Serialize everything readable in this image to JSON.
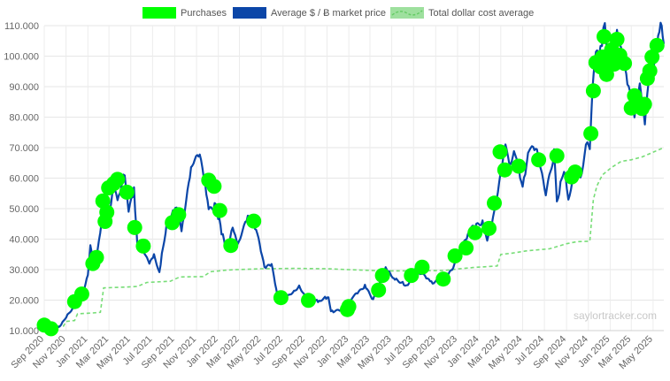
{
  "chart_data": {
    "type": "line",
    "title": "",
    "xlabel": "",
    "ylabel": "",
    "x_range": [
      "2020-09-01",
      "2025-05-31"
    ],
    "ylim": [
      10000,
      110000
    ],
    "grid": true,
    "legend_position": "top-center",
    "y_ticks": [
      {
        "value": 10000,
        "label": "10.000"
      },
      {
        "value": 20000,
        "label": "20.000"
      },
      {
        "value": 30000,
        "label": "30.000"
      },
      {
        "value": 40000,
        "label": "40.000"
      },
      {
        "value": 50000,
        "label": "50.000"
      },
      {
        "value": 60000,
        "label": "60.000"
      },
      {
        "value": 70000,
        "label": "70.000"
      },
      {
        "value": 80000,
        "label": "80.000"
      },
      {
        "value": 90000,
        "label": "90.000"
      },
      {
        "value": 100000,
        "label": "100.000"
      },
      {
        "value": 110000,
        "label": "110.000"
      }
    ],
    "x_ticks": [
      {
        "date": "2020-09-01",
        "label": "Sep 2020"
      },
      {
        "date": "2020-11-01",
        "label": "Nov 2020"
      },
      {
        "date": "2021-01-01",
        "label": "Jan 2021"
      },
      {
        "date": "2021-03-01",
        "label": "Mar 2021"
      },
      {
        "date": "2021-05-01",
        "label": "May 2021"
      },
      {
        "date": "2021-07-01",
        "label": "Jul 2021"
      },
      {
        "date": "2021-09-01",
        "label": "Sep 2021"
      },
      {
        "date": "2021-11-01",
        "label": "Nov 2021"
      },
      {
        "date": "2022-01-01",
        "label": "Jan 2022"
      },
      {
        "date": "2022-03-01",
        "label": "Mar 2022"
      },
      {
        "date": "2022-05-01",
        "label": "May 2022"
      },
      {
        "date": "2022-07-01",
        "label": "Jul 2022"
      },
      {
        "date": "2022-09-01",
        "label": "Sep 2022"
      },
      {
        "date": "2022-11-01",
        "label": "Nov 2022"
      },
      {
        "date": "2023-01-01",
        "label": "Jan 2023"
      },
      {
        "date": "2023-03-01",
        "label": "Mar 2023"
      },
      {
        "date": "2023-05-01",
        "label": "May 2023"
      },
      {
        "date": "2023-07-01",
        "label": "Jul 2023"
      },
      {
        "date": "2023-09-01",
        "label": "Sep 2023"
      },
      {
        "date": "2023-11-01",
        "label": "Nov 2023"
      },
      {
        "date": "2024-01-01",
        "label": "Jan 2024"
      },
      {
        "date": "2024-03-01",
        "label": "Mar 2024"
      },
      {
        "date": "2024-05-01",
        "label": "May 2024"
      },
      {
        "date": "2024-07-01",
        "label": "Jul 2024"
      },
      {
        "date": "2024-09-01",
        "label": "Sep 2024"
      },
      {
        "date": "2024-11-01",
        "label": "Nov 2024"
      },
      {
        "date": "2025-01-01",
        "label": "Jan 2025"
      },
      {
        "date": "2025-03-01",
        "label": "Mar 2025"
      },
      {
        "date": "2025-05-01",
        "label": "May 2025"
      }
    ],
    "series": [
      {
        "name": "Purchases",
        "kind": "scatter",
        "color": "#00ff00",
        "points": [
          {
            "x": "2020-09-01",
            "y": 11800
          },
          {
            "x": "2020-09-20",
            "y": 10600
          },
          {
            "x": "2020-11-25",
            "y": 19500
          },
          {
            "x": "2020-12-15",
            "y": 22000
          },
          {
            "x": "2021-01-15",
            "y": 32000
          },
          {
            "x": "2021-01-25",
            "y": 34000
          },
          {
            "x": "2021-02-12",
            "y": 52500
          },
          {
            "x": "2021-02-18",
            "y": 45800
          },
          {
            "x": "2021-02-23",
            "y": 48800
          },
          {
            "x": "2021-02-28",
            "y": 56800
          },
          {
            "x": "2021-03-14",
            "y": 58200
          },
          {
            "x": "2021-03-25",
            "y": 59600
          },
          {
            "x": "2021-04-20",
            "y": 55400
          },
          {
            "x": "2021-05-12",
            "y": 43800
          },
          {
            "x": "2021-06-05",
            "y": 37700
          },
          {
            "x": "2021-08-25",
            "y": 45400
          },
          {
            "x": "2021-09-12",
            "y": 48000
          },
          {
            "x": "2021-12-05",
            "y": 59300
          },
          {
            "x": "2021-12-20",
            "y": 57300
          },
          {
            "x": "2022-01-05",
            "y": 49400
          },
          {
            "x": "2022-02-05",
            "y": 37900
          },
          {
            "x": "2022-04-10",
            "y": 45900
          },
          {
            "x": "2022-06-25",
            "y": 20800
          },
          {
            "x": "2022-09-10",
            "y": 19900
          },
          {
            "x": "2022-12-28",
            "y": 16900
          },
          {
            "x": "2023-01-01",
            "y": 17900
          },
          {
            "x": "2023-03-25",
            "y": 23300
          },
          {
            "x": "2023-04-05",
            "y": 28100
          },
          {
            "x": "2023-06-25",
            "y": 28100
          },
          {
            "x": "2023-07-25",
            "y": 30800
          },
          {
            "x": "2023-09-22",
            "y": 26900
          },
          {
            "x": "2023-10-25",
            "y": 34500
          },
          {
            "x": "2023-11-25",
            "y": 37100
          },
          {
            "x": "2023-12-20",
            "y": 42100
          },
          {
            "x": "2024-01-28",
            "y": 43500
          },
          {
            "x": "2024-02-12",
            "y": 51800
          },
          {
            "x": "2024-02-28",
            "y": 68600
          },
          {
            "x": "2024-03-12",
            "y": 62700
          },
          {
            "x": "2024-04-20",
            "y": 63900
          },
          {
            "x": "2024-06-15",
            "y": 66000
          },
          {
            "x": "2024-08-05",
            "y": 67300
          },
          {
            "x": "2024-09-15",
            "y": 60400
          },
          {
            "x": "2024-09-25",
            "y": 62000
          },
          {
            "x": "2024-11-08",
            "y": 74600
          },
          {
            "x": "2024-11-15",
            "y": 88600
          },
          {
            "x": "2024-11-22",
            "y": 97900
          },
          {
            "x": "2024-12-05",
            "y": 96500
          },
          {
            "x": "2024-12-10",
            "y": 99700
          },
          {
            "x": "2024-12-15",
            "y": 106400
          },
          {
            "x": "2024-12-22",
            "y": 94000
          },
          {
            "x": "2024-12-28",
            "y": 98300
          },
          {
            "x": "2025-01-05",
            "y": 102100
          },
          {
            "x": "2025-01-12",
            "y": 97400
          },
          {
            "x": "2025-01-20",
            "y": 105500
          },
          {
            "x": "2025-01-28",
            "y": 100300
          },
          {
            "x": "2025-02-10",
            "y": 97600
          },
          {
            "x": "2025-03-01",
            "y": 83000
          },
          {
            "x": "2025-03-10",
            "y": 87000
          },
          {
            "x": "2025-03-17",
            "y": 84500
          },
          {
            "x": "2025-03-24",
            "y": 84000
          },
          {
            "x": "2025-03-31",
            "y": 82800
          },
          {
            "x": "2025-04-07",
            "y": 84200
          },
          {
            "x": "2025-04-15",
            "y": 92700
          },
          {
            "x": "2025-04-22",
            "y": 95200
          },
          {
            "x": "2025-04-28",
            "y": 99700
          },
          {
            "x": "2025-05-12",
            "y": 103500
          }
        ]
      },
      {
        "name": "Average $ / Ƀ market price",
        "kind": "line",
        "color": "#0b46a8",
        "points": [
          {
            "x": "2020-09-01",
            "y": 11500
          },
          {
            "x": "2020-09-20",
            "y": 10600
          },
          {
            "x": "2020-10-15",
            "y": 11500
          },
          {
            "x": "2020-11-05",
            "y": 15200
          },
          {
            "x": "2020-11-25",
            "y": 18200
          },
          {
            "x": "2020-12-15",
            "y": 21000
          },
          {
            "x": "2021-01-01",
            "y": 29000
          },
          {
            "x": "2021-01-08",
            "y": 38500
          },
          {
            "x": "2021-01-15",
            "y": 33000
          },
          {
            "x": "2021-01-25",
            "y": 34000
          },
          {
            "x": "2021-02-08",
            "y": 45000
          },
          {
            "x": "2021-02-21",
            "y": 56500
          },
          {
            "x": "2021-02-28",
            "y": 46000
          },
          {
            "x": "2021-03-14",
            "y": 60500
          },
          {
            "x": "2021-03-25",
            "y": 54000
          },
          {
            "x": "2021-04-14",
            "y": 63000
          },
          {
            "x": "2021-04-25",
            "y": 50000
          },
          {
            "x": "2021-05-10",
            "y": 57000
          },
          {
            "x": "2021-05-20",
            "y": 37500
          },
          {
            "x": "2021-06-05",
            "y": 36500
          },
          {
            "x": "2021-06-22",
            "y": 32000
          },
          {
            "x": "2021-07-05",
            "y": 35000
          },
          {
            "x": "2021-07-20",
            "y": 30000
          },
          {
            "x": "2021-08-10",
            "y": 45500
          },
          {
            "x": "2021-09-06",
            "y": 51500
          },
          {
            "x": "2021-09-20",
            "y": 43000
          },
          {
            "x": "2021-10-20",
            "y": 65000
          },
          {
            "x": "2021-11-10",
            "y": 67500
          },
          {
            "x": "2021-11-25",
            "y": 57500
          },
          {
            "x": "2021-12-05",
            "y": 49000
          },
          {
            "x": "2021-12-25",
            "y": 50500
          },
          {
            "x": "2022-01-10",
            "y": 42000
          },
          {
            "x": "2022-01-24",
            "y": 35500
          },
          {
            "x": "2022-02-10",
            "y": 44000
          },
          {
            "x": "2022-02-24",
            "y": 38000
          },
          {
            "x": "2022-03-28",
            "y": 47500
          },
          {
            "x": "2022-04-20",
            "y": 41000
          },
          {
            "x": "2022-05-10",
            "y": 30000
          },
          {
            "x": "2022-05-30",
            "y": 31000
          },
          {
            "x": "2022-06-15",
            "y": 21000
          },
          {
            "x": "2022-07-10",
            "y": 20500
          },
          {
            "x": "2022-08-15",
            "y": 24200
          },
          {
            "x": "2022-09-10",
            "y": 19500
          },
          {
            "x": "2022-10-10",
            "y": 19500
          },
          {
            "x": "2022-11-05",
            "y": 21000
          },
          {
            "x": "2022-11-12",
            "y": 16000
          },
          {
            "x": "2022-12-20",
            "y": 16800
          },
          {
            "x": "2023-01-15",
            "y": 21000
          },
          {
            "x": "2023-02-15",
            "y": 24500
          },
          {
            "x": "2023-03-10",
            "y": 20000
          },
          {
            "x": "2023-04-14",
            "y": 30500
          },
          {
            "x": "2023-05-10",
            "y": 27000
          },
          {
            "x": "2023-06-15",
            "y": 25000
          },
          {
            "x": "2023-07-05",
            "y": 30800
          },
          {
            "x": "2023-08-20",
            "y": 26000
          },
          {
            "x": "2023-09-20",
            "y": 27000
          },
          {
            "x": "2023-10-20",
            "y": 30500
          },
          {
            "x": "2023-11-10",
            "y": 37000
          },
          {
            "x": "2023-12-10",
            "y": 44000
          },
          {
            "x": "2024-01-10",
            "y": 46500
          },
          {
            "x": "2024-01-23",
            "y": 39500
          },
          {
            "x": "2024-02-15",
            "y": 52000
          },
          {
            "x": "2024-03-14",
            "y": 73500
          },
          {
            "x": "2024-03-25",
            "y": 66000
          },
          {
            "x": "2024-04-10",
            "y": 70000
          },
          {
            "x": "2024-05-01",
            "y": 57500
          },
          {
            "x": "2024-05-20",
            "y": 71000
          },
          {
            "x": "2024-06-10",
            "y": 69500
          },
          {
            "x": "2024-07-05",
            "y": 55000
          },
          {
            "x": "2024-07-28",
            "y": 69000
          },
          {
            "x": "2024-08-05",
            "y": 53000
          },
          {
            "x": "2024-08-25",
            "y": 64000
          },
          {
            "x": "2024-09-06",
            "y": 53500
          },
          {
            "x": "2024-09-28",
            "y": 65500
          },
          {
            "x": "2024-10-10",
            "y": 60000
          },
          {
            "x": "2024-10-29",
            "y": 72500
          },
          {
            "x": "2024-11-05",
            "y": 68500
          },
          {
            "x": "2024-11-13",
            "y": 90000
          },
          {
            "x": "2024-11-22",
            "y": 99000
          },
          {
            "x": "2024-12-05",
            "y": 103000
          },
          {
            "x": "2024-12-17",
            "y": 107500
          },
          {
            "x": "2024-12-30",
            "y": 92000
          },
          {
            "x": "2025-01-08",
            "y": 96000
          },
          {
            "x": "2025-01-20",
            "y": 108000
          },
          {
            "x": "2025-02-05",
            "y": 97000
          },
          {
            "x": "2025-02-25",
            "y": 86000
          },
          {
            "x": "2025-03-10",
            "y": 79000
          },
          {
            "x": "2025-03-25",
            "y": 88000
          },
          {
            "x": "2025-04-08",
            "y": 76500
          },
          {
            "x": "2025-04-22",
            "y": 93500
          },
          {
            "x": "2025-05-05",
            "y": 97000
          },
          {
            "x": "2025-05-22",
            "y": 110500
          },
          {
            "x": "2025-05-31",
            "y": 104000
          }
        ]
      },
      {
        "name": "Total dollar cost average",
        "kind": "line",
        "style": "dashed",
        "color": "#77dd77",
        "points": [
          {
            "x": "2020-09-01",
            "y": 11500
          },
          {
            "x": "2020-10-25",
            "y": 11500
          },
          {
            "x": "2020-11-01",
            "y": 13000
          },
          {
            "x": "2020-11-25",
            "y": 13300
          },
          {
            "x": "2020-12-03",
            "y": 15500
          },
          {
            "x": "2021-01-15",
            "y": 15800
          },
          {
            "x": "2021-02-05",
            "y": 16000
          },
          {
            "x": "2021-02-14",
            "y": 24000
          },
          {
            "x": "2021-04-20",
            "y": 24300
          },
          {
            "x": "2021-05-20",
            "y": 24500
          },
          {
            "x": "2021-06-15",
            "y": 25800
          },
          {
            "x": "2021-08-20",
            "y": 26200
          },
          {
            "x": "2021-09-15",
            "y": 27600
          },
          {
            "x": "2021-11-20",
            "y": 27700
          },
          {
            "x": "2021-12-10",
            "y": 29300
          },
          {
            "x": "2022-01-20",
            "y": 29800
          },
          {
            "x": "2022-02-20",
            "y": 30000
          },
          {
            "x": "2022-05-01",
            "y": 30300
          },
          {
            "x": "2022-08-01",
            "y": 30400
          },
          {
            "x": "2022-11-01",
            "y": 30300
          },
          {
            "x": "2023-01-01",
            "y": 30000
          },
          {
            "x": "2023-04-01",
            "y": 29600
          },
          {
            "x": "2023-07-01",
            "y": 29600
          },
          {
            "x": "2023-09-25",
            "y": 29700
          },
          {
            "x": "2023-11-01",
            "y": 30200
          },
          {
            "x": "2023-12-15",
            "y": 30700
          },
          {
            "x": "2024-02-20",
            "y": 31200
          },
          {
            "x": "2024-03-01",
            "y": 35000
          },
          {
            "x": "2024-04-01",
            "y": 35400
          },
          {
            "x": "2024-05-15",
            "y": 36200
          },
          {
            "x": "2024-07-15",
            "y": 36800
          },
          {
            "x": "2024-09-01",
            "y": 38500
          },
          {
            "x": "2024-10-01",
            "y": 39200
          },
          {
            "x": "2024-11-05",
            "y": 39300
          },
          {
            "x": "2024-11-15",
            "y": 53000
          },
          {
            "x": "2024-11-25",
            "y": 57500
          },
          {
            "x": "2024-12-10",
            "y": 61000
          },
          {
            "x": "2025-01-05",
            "y": 63500
          },
          {
            "x": "2025-02-01",
            "y": 65500
          },
          {
            "x": "2025-03-01",
            "y": 66000
          },
          {
            "x": "2025-04-01",
            "y": 67000
          },
          {
            "x": "2025-05-31",
            "y": 70000
          }
        ]
      }
    ],
    "watermark": "saylortracker.com"
  },
  "legend": {
    "purchases": "Purchases",
    "market_price": "Average $ / Ƀ market price",
    "dca": "Total dollar cost average"
  }
}
